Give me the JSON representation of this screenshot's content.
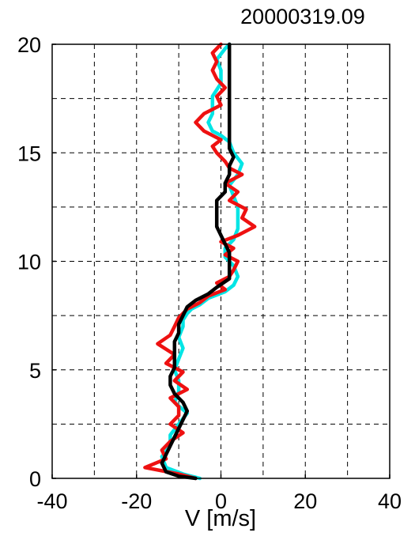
{
  "chart_data": {
    "type": "line",
    "title": "20000319.09",
    "xlabel": "V [m/s]",
    "ylabel": "",
    "xlim": [
      -40,
      40
    ],
    "ylim": [
      0,
      20
    ],
    "xticks": [
      -40,
      -20,
      0,
      20,
      40
    ],
    "yticks": [
      0,
      5,
      10,
      15,
      20
    ],
    "xtick_labels": [
      "-40",
      "-20",
      "0",
      "20",
      "40"
    ],
    "ytick_labels": [
      "0",
      "5",
      "10",
      "15",
      "20"
    ],
    "grid": true,
    "grid_style": "dashed",
    "legend": "none",
    "series": [
      {
        "color": "#00e5e5",
        "points": [
          [
            -5,
            0.0
          ],
          [
            -9,
            0.2
          ],
          [
            -13,
            0.5
          ],
          [
            -14,
            1.0
          ],
          [
            -12,
            1.5
          ],
          [
            -12,
            2.0
          ],
          [
            -10,
            2.5
          ],
          [
            -8,
            3.0
          ],
          [
            -11,
            3.5
          ],
          [
            -10,
            4.0
          ],
          [
            -10,
            4.5
          ],
          [
            -11,
            5.0
          ],
          [
            -10,
            5.5
          ],
          [
            -9,
            6.0
          ],
          [
            -10,
            6.5
          ],
          [
            -9,
            7.0
          ],
          [
            -9,
            7.3
          ],
          [
            -8,
            7.6
          ],
          [
            -7,
            7.8
          ],
          [
            -5,
            8.0
          ],
          [
            -3,
            8.3
          ],
          [
            1,
            8.6
          ],
          [
            3,
            8.9
          ],
          [
            4,
            9.3
          ],
          [
            3,
            9.8
          ],
          [
            1,
            10.2
          ],
          [
            1,
            10.6
          ],
          [
            3,
            11.0
          ],
          [
            4,
            11.5
          ],
          [
            4,
            12.0
          ],
          [
            4,
            12.5
          ],
          [
            3,
            13.0
          ],
          [
            2,
            13.5
          ],
          [
            4,
            14.0
          ],
          [
            5,
            14.5
          ],
          [
            3,
            15.0
          ],
          [
            2,
            15.5
          ],
          [
            0,
            15.8
          ],
          [
            -2,
            16.0
          ],
          [
            -3,
            16.4
          ],
          [
            -2,
            16.8
          ],
          [
            -2,
            17.2
          ],
          [
            -2,
            17.6
          ],
          [
            0,
            18.2
          ],
          [
            0,
            18.8
          ],
          [
            -1,
            19.3
          ],
          [
            1,
            19.8
          ],
          [
            2,
            20.0
          ]
        ]
      },
      {
        "color": "#ee1111",
        "points": [
          [
            -6,
            0.0
          ],
          [
            -10,
            0.2
          ],
          [
            -18,
            0.5
          ],
          [
            -13,
            0.9
          ],
          [
            -14,
            1.3
          ],
          [
            -12,
            1.7
          ],
          [
            -9,
            2.1
          ],
          [
            -12,
            2.5
          ],
          [
            -10,
            2.9
          ],
          [
            -10,
            3.3
          ],
          [
            -12,
            3.7
          ],
          [
            -8,
            4.1
          ],
          [
            -11,
            4.5
          ],
          [
            -9,
            4.9
          ],
          [
            -13,
            5.3
          ],
          [
            -11,
            5.7
          ],
          [
            -15,
            6.2
          ],
          [
            -12,
            6.6
          ],
          [
            -11,
            7.0
          ],
          [
            -10,
            7.4
          ],
          [
            -8,
            7.8
          ],
          [
            -5,
            8.1
          ],
          [
            -3,
            8.4
          ],
          [
            1,
            8.7
          ],
          [
            -1,
            9.0
          ],
          [
            2,
            9.3
          ],
          [
            3,
            9.6
          ],
          [
            4,
            10.0
          ],
          [
            1,
            10.3
          ],
          [
            3,
            10.6
          ],
          [
            0,
            10.9
          ],
          [
            4,
            11.2
          ],
          [
            8,
            11.6
          ],
          [
            5,
            12.0
          ],
          [
            6,
            12.4
          ],
          [
            2,
            12.8
          ],
          [
            4,
            13.2
          ],
          [
            1,
            13.6
          ],
          [
            5,
            14.0
          ],
          [
            2,
            14.3
          ],
          [
            1,
            14.6
          ],
          [
            -1,
            15.0
          ],
          [
            -2,
            15.3
          ],
          [
            0,
            15.6
          ],
          [
            -4,
            16.0
          ],
          [
            -6,
            16.4
          ],
          [
            -4,
            16.8
          ],
          [
            0,
            17.2
          ],
          [
            -1,
            17.6
          ],
          [
            1,
            18.0
          ],
          [
            -1,
            18.4
          ],
          [
            -2,
            18.8
          ],
          [
            -1,
            19.2
          ],
          [
            -2,
            19.6
          ],
          [
            0,
            20.0
          ]
        ]
      },
      {
        "color": "#000000",
        "points": [
          [
            -6,
            0.0
          ],
          [
            -10,
            0.1
          ],
          [
            -13,
            0.3
          ],
          [
            -14,
            0.7
          ],
          [
            -13,
            1.1
          ],
          [
            -12,
            1.5
          ],
          [
            -11,
            1.9
          ],
          [
            -10,
            2.3
          ],
          [
            -9,
            2.7
          ],
          [
            -8,
            3.1
          ],
          [
            -9,
            3.5
          ],
          [
            -11,
            3.9
          ],
          [
            -12,
            4.3
          ],
          [
            -12,
            4.7
          ],
          [
            -11,
            5.1
          ],
          [
            -11,
            5.5
          ],
          [
            -11,
            5.9
          ],
          [
            -11,
            6.3
          ],
          [
            -10,
            6.7
          ],
          [
            -10,
            7.1
          ],
          [
            -9,
            7.5
          ],
          [
            -8,
            7.9
          ],
          [
            -6,
            8.2
          ],
          [
            -3,
            8.5
          ],
          [
            -1,
            8.8
          ],
          [
            2,
            9.2
          ],
          [
            2,
            9.6
          ],
          [
            2,
            10.0
          ],
          [
            2,
            10.4
          ],
          [
            1,
            10.8
          ],
          [
            0,
            11.2
          ],
          [
            -1,
            11.6
          ],
          [
            -1,
            12.0
          ],
          [
            -1,
            12.4
          ],
          [
            -1,
            12.8
          ],
          [
            1,
            13.2
          ],
          [
            1,
            13.6
          ],
          [
            2,
            14.0
          ],
          [
            2,
            14.4
          ],
          [
            3,
            14.8
          ],
          [
            2,
            15.2
          ],
          [
            2,
            15.6
          ],
          [
            2,
            16.0
          ],
          [
            2,
            17.0
          ],
          [
            2,
            18.0
          ],
          [
            2,
            19.0
          ],
          [
            2,
            20.0
          ]
        ]
      }
    ]
  }
}
